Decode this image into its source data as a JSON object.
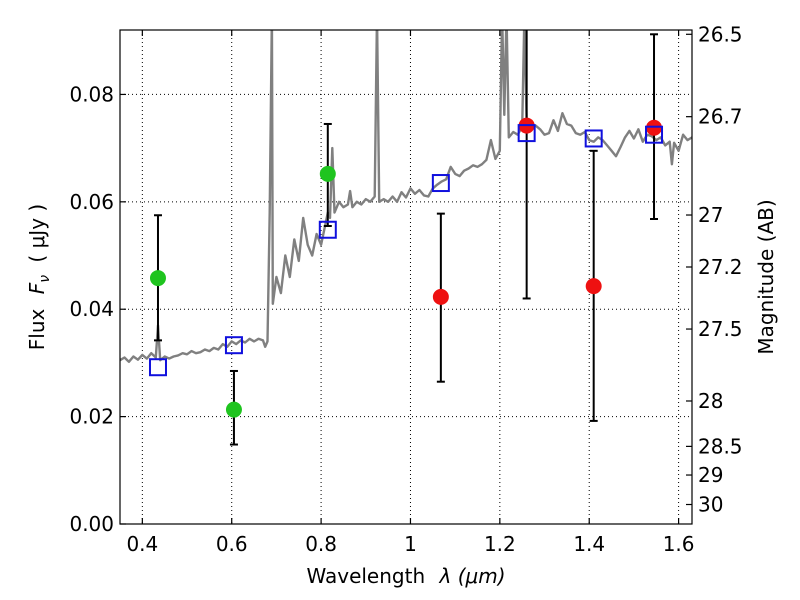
{
  "chart_data": {
    "type": "scatter",
    "xlabel_text": "Wavelength",
    "xlabel_math": "λ (μm)",
    "ylabel_left_prefix": "Flux",
    "ylabel_left_math": "F",
    "ylabel_left_math_sub": "ν",
    "ylabel_left_unit": "( μJy )",
    "ylabel_right": "Magnitude (AB)",
    "xlim": [
      0.35,
      1.63
    ],
    "ylim": [
      0.0,
      0.092
    ],
    "x_ticks": [
      0.4,
      0.6,
      0.8,
      1.0,
      1.2,
      1.4,
      1.6
    ],
    "x_tick_labels": [
      "0.4",
      "0.6",
      "0.8",
      "1",
      "1.2",
      "1.4",
      "1.6"
    ],
    "y_ticks": [
      0.0,
      0.02,
      0.04,
      0.06,
      0.08
    ],
    "y_tick_labels": [
      "0.00",
      "0.02",
      "0.04",
      "0.06",
      "0.08"
    ],
    "mag_ticks": [
      26.5,
      26.7,
      27,
      27.2,
      27.5,
      28,
      28.5,
      29,
      30
    ],
    "mag_tick_labels": [
      "26.5",
      "26.7",
      "27",
      "27.2",
      "27.5",
      "28",
      "28.5",
      "29",
      "30"
    ],
    "grid": true,
    "colors": {
      "spectrum": "#808080",
      "green": "#1fc41f",
      "red": "#ee1111",
      "model": "#1010dd",
      "errorbar": "#000000"
    },
    "series": [
      {
        "kind": "line",
        "points": [
          [
            0.35,
            0.0305
          ],
          [
            0.36,
            0.031
          ],
          [
            0.37,
            0.0302
          ],
          [
            0.38,
            0.0312
          ],
          [
            0.39,
            0.0306
          ],
          [
            0.4,
            0.0315
          ],
          [
            0.41,
            0.0308
          ],
          [
            0.42,
            0.0318
          ],
          [
            0.43,
            0.031
          ],
          [
            0.435,
            0.037
          ],
          [
            0.44,
            0.0305
          ],
          [
            0.45,
            0.0312
          ],
          [
            0.46,
            0.0308
          ],
          [
            0.47,
            0.0312
          ],
          [
            0.48,
            0.0314
          ],
          [
            0.49,
            0.0318
          ],
          [
            0.5,
            0.0316
          ],
          [
            0.51,
            0.0322
          ],
          [
            0.52,
            0.0318
          ],
          [
            0.53,
            0.032
          ],
          [
            0.54,
            0.0325
          ],
          [
            0.55,
            0.0322
          ],
          [
            0.56,
            0.0328
          ],
          [
            0.57,
            0.0325
          ],
          [
            0.58,
            0.0335
          ],
          [
            0.59,
            0.033
          ],
          [
            0.6,
            0.034
          ],
          [
            0.61,
            0.0335
          ],
          [
            0.62,
            0.0342
          ],
          [
            0.63,
            0.0338
          ],
          [
            0.64,
            0.0345
          ],
          [
            0.65,
            0.034
          ],
          [
            0.66,
            0.0345
          ],
          [
            0.67,
            0.0342
          ],
          [
            0.675,
            0.033
          ],
          [
            0.68,
            0.034
          ],
          [
            0.685,
            0.058
          ],
          [
            0.69,
            0.095
          ],
          [
            0.692,
            0.041
          ],
          [
            0.7,
            0.046
          ],
          [
            0.71,
            0.043
          ],
          [
            0.72,
            0.05
          ],
          [
            0.73,
            0.046
          ],
          [
            0.74,
            0.053
          ],
          [
            0.75,
            0.049
          ],
          [
            0.76,
            0.057
          ],
          [
            0.77,
            0.052
          ],
          [
            0.78,
            0.05
          ],
          [
            0.79,
            0.054
          ],
          [
            0.8,
            0.052
          ],
          [
            0.81,
            0.056
          ],
          [
            0.815,
            0.058
          ],
          [
            0.82,
            0.057
          ],
          [
            0.825,
            0.07
          ],
          [
            0.83,
            0.058
          ],
          [
            0.84,
            0.06
          ],
          [
            0.85,
            0.059
          ],
          [
            0.86,
            0.0595
          ],
          [
            0.865,
            0.062
          ],
          [
            0.87,
            0.059
          ],
          [
            0.88,
            0.06
          ],
          [
            0.89,
            0.0595
          ],
          [
            0.9,
            0.0605
          ],
          [
            0.91,
            0.06
          ],
          [
            0.92,
            0.061
          ],
          [
            0.925,
            0.095
          ],
          [
            0.93,
            0.06
          ],
          [
            0.94,
            0.0605
          ],
          [
            0.95,
            0.06
          ],
          [
            0.96,
            0.061
          ],
          [
            0.97,
            0.06
          ],
          [
            0.98,
            0.0618
          ],
          [
            0.99,
            0.0608
          ],
          [
            1.0,
            0.0625
          ],
          [
            1.01,
            0.0615
          ],
          [
            1.02,
            0.0622
          ],
          [
            1.03,
            0.0612
          ],
          [
            1.04,
            0.061
          ],
          [
            1.05,
            0.0625
          ],
          [
            1.06,
            0.0632
          ],
          [
            1.07,
            0.0638
          ],
          [
            1.08,
            0.0642
          ],
          [
            1.09,
            0.0665
          ],
          [
            1.1,
            0.0652
          ],
          [
            1.11,
            0.0648
          ],
          [
            1.12,
            0.0658
          ],
          [
            1.13,
            0.0662
          ],
          [
            1.14,
            0.0668
          ],
          [
            1.15,
            0.0665
          ],
          [
            1.16,
            0.067
          ],
          [
            1.17,
            0.0678
          ],
          [
            1.18,
            0.0715
          ],
          [
            1.19,
            0.068
          ],
          [
            1.2,
            0.0695
          ],
          [
            1.205,
            0.095
          ],
          [
            1.21,
            0.0762
          ],
          [
            1.215,
            0.095
          ],
          [
            1.22,
            0.072
          ],
          [
            1.23,
            0.073
          ],
          [
            1.24,
            0.0725
          ],
          [
            1.25,
            0.074
          ],
          [
            1.255,
            0.095
          ],
          [
            1.26,
            0.0738
          ],
          [
            1.27,
            0.0735
          ],
          [
            1.28,
            0.0742
          ],
          [
            1.29,
            0.0735
          ],
          [
            1.3,
            0.0725
          ],
          [
            1.31,
            0.0728
          ],
          [
            1.32,
            0.0752
          ],
          [
            1.33,
            0.0732
          ],
          [
            1.34,
            0.0765
          ],
          [
            1.35,
            0.0745
          ],
          [
            1.36,
            0.0742
          ],
          [
            1.37,
            0.0728
          ],
          [
            1.38,
            0.0725
          ],
          [
            1.39,
            0.073
          ],
          [
            1.4,
            0.0715
          ],
          [
            1.41,
            0.0712
          ],
          [
            1.42,
            0.072
          ],
          [
            1.43,
            0.0715
          ],
          [
            1.44,
            0.0705
          ],
          [
            1.45,
            0.0695
          ],
          [
            1.46,
            0.0685
          ],
          [
            1.47,
            0.0702
          ],
          [
            1.48,
            0.072
          ],
          [
            1.49,
            0.0732
          ],
          [
            1.5,
            0.0718
          ],
          [
            1.51,
            0.0735
          ],
          [
            1.52,
            0.0712
          ],
          [
            1.53,
            0.0725
          ],
          [
            1.54,
            0.0722
          ],
          [
            1.55,
            0.0715
          ],
          [
            1.56,
            0.072
          ],
          [
            1.57,
            0.0705
          ],
          [
            1.58,
            0.0712
          ],
          [
            1.585,
            0.067
          ],
          [
            1.59,
            0.071
          ],
          [
            1.6,
            0.0695
          ],
          [
            1.61,
            0.0725
          ],
          [
            1.62,
            0.0715
          ],
          [
            1.63,
            0.072
          ]
        ]
      },
      {
        "kind": "errorbar",
        "color": "green",
        "points": [
          {
            "x": 0.435,
            "y": 0.0458,
            "ylo": 0.0342,
            "yhi": 0.0575
          },
          {
            "x": 0.605,
            "y": 0.0213,
            "ylo": 0.0148,
            "yhi": 0.0285
          },
          {
            "x": 0.815,
            "y": 0.0652,
            "ylo": 0.0555,
            "yhi": 0.0745
          }
        ]
      },
      {
        "kind": "errorbar",
        "color": "red",
        "points": [
          {
            "x": 1.068,
            "y": 0.0423,
            "ylo": 0.0265,
            "yhi": 0.0578
          },
          {
            "x": 1.26,
            "y": 0.0742,
            "ylo": 0.042,
            "yhi": 0.095
          },
          {
            "x": 1.41,
            "y": 0.0443,
            "ylo": 0.0192,
            "yhi": 0.0695
          },
          {
            "x": 1.545,
            "y": 0.0738,
            "ylo": 0.0568,
            "yhi": 0.0912
          }
        ]
      },
      {
        "kind": "square",
        "color": "model",
        "points": [
          [
            0.435,
            0.0292
          ],
          [
            0.605,
            0.0333
          ],
          [
            0.815,
            0.0548
          ],
          [
            1.068,
            0.0635
          ],
          [
            1.26,
            0.0728
          ],
          [
            1.41,
            0.0718
          ],
          [
            1.545,
            0.0725
          ]
        ]
      }
    ]
  }
}
